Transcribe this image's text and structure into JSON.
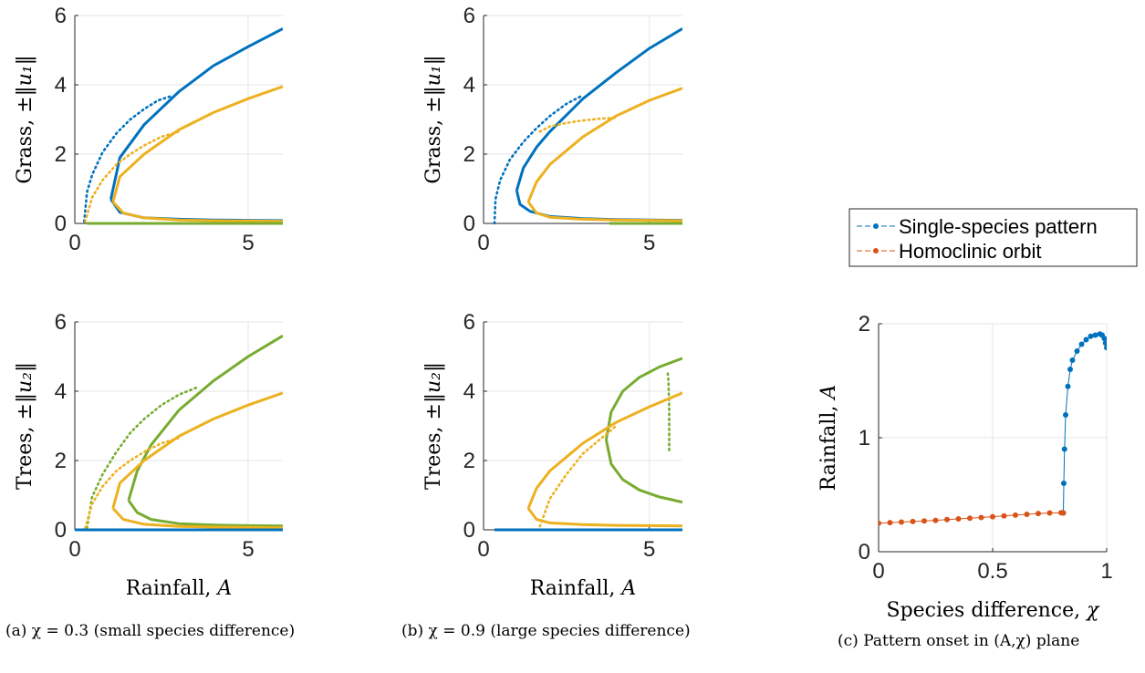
{
  "captions": {
    "a": "(a) χ = 0.3 (small species difference)",
    "b": "(b) χ = 0.9 (large species difference)",
    "c": "(c) Pattern onset in (A,χ) plane"
  },
  "colors": {
    "blue": "#0072BD",
    "orange": "#D95319",
    "yellow": "#EDB120",
    "green": "#77AC30",
    "grid": "#e6e6e6",
    "axis": "#262626"
  },
  "chart_data": [
    {
      "id": "a-grass",
      "type": "line",
      "ylabel": "Grass, ±‖u₁‖",
      "xlabel": "",
      "xlim": [
        0,
        6
      ],
      "ylim": [
        0,
        6
      ],
      "xticks": [
        0,
        5
      ],
      "yticks": [
        0,
        2,
        4,
        6
      ],
      "grid": true,
      "series": [
        {
          "color": "blue",
          "style": "solid",
          "x": [
            1.04,
            1.3,
            2,
            3,
            4,
            5,
            6
          ],
          "y": [
            0.7,
            1.9,
            2.85,
            3.8,
            4.55,
            5.1,
            5.62
          ]
        },
        {
          "color": "blue",
          "style": "solid",
          "x": [
            1.04,
            1.3,
            2,
            3,
            4,
            5,
            6
          ],
          "y": [
            0.7,
            0.32,
            0.16,
            0.12,
            0.1,
            0.09,
            0.08
          ]
        },
        {
          "color": "blue",
          "style": "dotted",
          "x": [
            0.27,
            0.35,
            0.5,
            0.8,
            1.2,
            1.6,
            2.0,
            2.4,
            2.8
          ],
          "y": [
            0.05,
            0.9,
            1.4,
            2.05,
            2.6,
            3.0,
            3.3,
            3.55,
            3.68
          ]
        },
        {
          "color": "yellow",
          "style": "solid",
          "x": [
            1.1,
            1.3,
            2,
            3,
            4,
            5,
            6
          ],
          "y": [
            0.62,
            1.35,
            2.0,
            2.7,
            3.2,
            3.6,
            3.95
          ]
        },
        {
          "color": "yellow",
          "style": "solid",
          "x": [
            1.1,
            1.4,
            2,
            3,
            4,
            5,
            6
          ],
          "y": [
            0.62,
            0.3,
            0.16,
            0.1,
            0.08,
            0.07,
            0.06
          ]
        },
        {
          "color": "yellow",
          "style": "dotted",
          "x": [
            0.3,
            0.5,
            0.8,
            1.2,
            1.6,
            2.0,
            2.5,
            3.0
          ],
          "y": [
            0.05,
            0.75,
            1.25,
            1.7,
            2.0,
            2.25,
            2.5,
            2.65
          ]
        },
        {
          "color": "green",
          "style": "solid",
          "x": [
            0.35,
            6
          ],
          "y": [
            0.0,
            0.0
          ]
        }
      ]
    },
    {
      "id": "b-grass",
      "type": "line",
      "ylabel": "Grass, ±‖u₁‖",
      "xlabel": "",
      "xlim": [
        0,
        6
      ],
      "ylim": [
        0,
        6
      ],
      "xticks": [
        0,
        5
      ],
      "yticks": [
        0,
        2,
        4,
        6
      ],
      "grid": true,
      "series": [
        {
          "color": "blue",
          "style": "solid",
          "x": [
            1.0,
            1.2,
            1.6,
            2,
            3,
            4,
            5,
            6
          ],
          "y": [
            0.95,
            1.6,
            2.2,
            2.65,
            3.6,
            4.35,
            5.05,
            5.62
          ]
        },
        {
          "color": "blue",
          "style": "solid",
          "x": [
            1.0,
            1.1,
            1.4,
            2,
            3,
            4,
            5,
            6
          ],
          "y": [
            0.95,
            0.55,
            0.35,
            0.2,
            0.14,
            0.11,
            0.1,
            0.09
          ]
        },
        {
          "color": "blue",
          "style": "dotted",
          "x": [
            0.33,
            0.36,
            0.5,
            0.8,
            1.2,
            1.6,
            2.0,
            2.5,
            3.0
          ],
          "y": [
            0.0,
            0.7,
            1.25,
            1.85,
            2.35,
            2.75,
            3.1,
            3.45,
            3.7
          ]
        },
        {
          "color": "yellow",
          "style": "solid",
          "x": [
            1.35,
            1.6,
            2,
            3,
            4,
            5,
            6
          ],
          "y": [
            0.62,
            1.2,
            1.7,
            2.5,
            3.1,
            3.55,
            3.9
          ]
        },
        {
          "color": "yellow",
          "style": "solid",
          "x": [
            1.35,
            1.6,
            2,
            3,
            4,
            5,
            6
          ],
          "y": [
            0.62,
            0.3,
            0.18,
            0.12,
            0.1,
            0.09,
            0.08
          ]
        },
        {
          "color": "yellow",
          "style": "dotted",
          "x": [
            1.7,
            2.0,
            2.5,
            3.0,
            3.5,
            4.0
          ],
          "y": [
            2.65,
            2.8,
            2.9,
            2.97,
            3.02,
            3.05
          ]
        },
        {
          "color": "green",
          "style": "solid",
          "x": [
            3.8,
            6
          ],
          "y": [
            0.0,
            0.0
          ]
        }
      ]
    },
    {
      "id": "a-trees",
      "type": "line",
      "ylabel": "Trees, ±‖u₂‖",
      "xlabel": "Rainfall, A",
      "xlim": [
        0,
        6
      ],
      "ylim": [
        0,
        6
      ],
      "xticks": [
        0,
        5
      ],
      "yticks": [
        0,
        2,
        4,
        6
      ],
      "grid": true,
      "series": [
        {
          "color": "green",
          "style": "solid",
          "x": [
            1.55,
            1.8,
            2.2,
            3,
            4,
            5,
            6
          ],
          "y": [
            0.85,
            1.7,
            2.45,
            3.45,
            4.3,
            5.0,
            5.6
          ]
        },
        {
          "color": "green",
          "style": "solid",
          "x": [
            1.55,
            1.8,
            2.2,
            3,
            4,
            5,
            6
          ],
          "y": [
            0.85,
            0.5,
            0.3,
            0.18,
            0.14,
            0.12,
            0.11
          ]
        },
        {
          "color": "green",
          "style": "dotted",
          "x": [
            0.35,
            0.5,
            0.8,
            1.2,
            1.6,
            2.0,
            2.5,
            3.0,
            3.5
          ],
          "y": [
            0.05,
            0.95,
            1.6,
            2.25,
            2.8,
            3.2,
            3.6,
            3.9,
            4.1
          ]
        },
        {
          "color": "yellow",
          "style": "solid",
          "x": [
            1.1,
            1.3,
            2,
            3,
            4,
            5,
            6
          ],
          "y": [
            0.62,
            1.35,
            2.0,
            2.7,
            3.2,
            3.6,
            3.95
          ]
        },
        {
          "color": "yellow",
          "style": "solid",
          "x": [
            1.1,
            1.4,
            2,
            3,
            4,
            5,
            6
          ],
          "y": [
            0.62,
            0.3,
            0.16,
            0.1,
            0.08,
            0.07,
            0.06
          ]
        },
        {
          "color": "yellow",
          "style": "dotted",
          "x": [
            0.3,
            0.5,
            0.8,
            1.2,
            1.6,
            2.0,
            2.5,
            3.0
          ],
          "y": [
            0.05,
            0.75,
            1.25,
            1.7,
            2.0,
            2.25,
            2.5,
            2.65
          ]
        },
        {
          "color": "blue",
          "style": "solid",
          "x": [
            0.0,
            6
          ],
          "y": [
            0.0,
            0.0
          ]
        }
      ]
    },
    {
      "id": "b-trees",
      "type": "line",
      "ylabel": "Trees, ±‖u₂‖",
      "xlabel": "Rainfall, A",
      "xlim": [
        0,
        6
      ],
      "ylim": [
        0,
        6
      ],
      "xticks": [
        0,
        5
      ],
      "yticks": [
        0,
        2,
        4,
        6
      ],
      "grid": true,
      "series": [
        {
          "color": "green",
          "style": "solid",
          "x": [
            3.7,
            3.85,
            4.2,
            4.7,
            5.3,
            6
          ],
          "y": [
            2.6,
            3.4,
            4.0,
            4.4,
            4.7,
            4.95
          ]
        },
        {
          "color": "green",
          "style": "solid",
          "x": [
            3.7,
            3.85,
            4.2,
            4.7,
            5.3,
            6
          ],
          "y": [
            2.6,
            1.9,
            1.45,
            1.15,
            0.95,
            0.8
          ]
        },
        {
          "color": "green",
          "style": "dotted",
          "x": [
            5.6,
            5.6,
            5.58,
            5.55
          ],
          "y": [
            2.3,
            3.5,
            4.3,
            4.6
          ]
        },
        {
          "color": "yellow",
          "style": "solid",
          "x": [
            1.35,
            1.6,
            2,
            3,
            4,
            5,
            6
          ],
          "y": [
            0.62,
            1.2,
            1.7,
            2.5,
            3.1,
            3.55,
            3.95
          ]
        },
        {
          "color": "yellow",
          "style": "solid",
          "x": [
            1.35,
            1.6,
            2,
            3,
            4,
            5,
            6
          ],
          "y": [
            0.62,
            0.3,
            0.2,
            0.15,
            0.13,
            0.12,
            0.11
          ]
        },
        {
          "color": "yellow",
          "style": "dotted",
          "x": [
            1.7,
            2.0,
            2.5,
            3.0,
            3.5,
            4.0
          ],
          "y": [
            0.1,
            0.9,
            1.6,
            2.2,
            2.6,
            3.0
          ]
        },
        {
          "color": "blue",
          "style": "solid",
          "x": [
            0.33,
            6
          ],
          "y": [
            0.0,
            0.0
          ]
        }
      ]
    },
    {
      "id": "c-onset",
      "type": "scatter",
      "ylabel": "Rainfall, A",
      "xlabel": "Species difference, χ",
      "xlim": [
        0,
        1
      ],
      "ylim": [
        0,
        2
      ],
      "xticks": [
        0,
        0.5,
        1
      ],
      "xticklabels": [
        "0",
        "0.5",
        "1"
      ],
      "yticks": [
        0,
        1,
        2
      ],
      "yticklabels": [
        "0",
        "1",
        "2"
      ],
      "grid": true,
      "legend": "upper-right",
      "series": [
        {
          "name": "Single-species pattern",
          "color": "blue",
          "x": [
            0.81,
            0.812,
            0.815,
            0.82,
            0.83,
            0.84,
            0.85,
            0.87,
            0.89,
            0.91,
            0.93,
            0.95,
            0.97,
            0.98,
            0.99,
            0.995,
            1.0
          ],
          "y": [
            0.34,
            0.6,
            0.9,
            1.2,
            1.45,
            1.6,
            1.68,
            1.76,
            1.82,
            1.86,
            1.89,
            1.9,
            1.91,
            1.9,
            1.87,
            1.83,
            1.79
          ]
        },
        {
          "name": "Homoclinic orbit",
          "color": "orange",
          "x": [
            0.0,
            0.05,
            0.1,
            0.15,
            0.2,
            0.25,
            0.3,
            0.35,
            0.4,
            0.45,
            0.5,
            0.55,
            0.6,
            0.65,
            0.7,
            0.75,
            0.8,
            0.81
          ],
          "y": [
            0.25,
            0.255,
            0.26,
            0.265,
            0.27,
            0.275,
            0.282,
            0.288,
            0.294,
            0.3,
            0.307,
            0.314,
            0.321,
            0.328,
            0.335,
            0.34,
            0.342,
            0.34
          ]
        }
      ]
    }
  ]
}
